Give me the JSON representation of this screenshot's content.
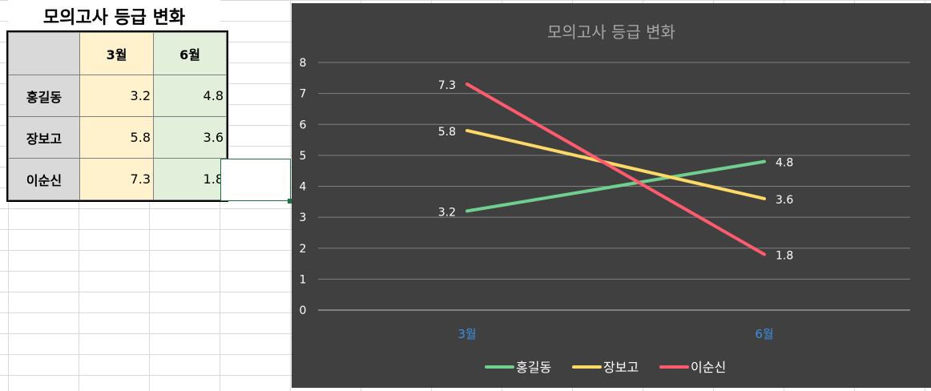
{
  "sheet": {
    "title": "모의고사 등급 변화",
    "table": {
      "headers": [
        "",
        "3월",
        "6월"
      ],
      "rows": [
        {
          "name": "홍길동",
          "mar": "3.2",
          "jun": "4.8"
        },
        {
          "name": "장보고",
          "mar": "5.8",
          "jun": "3.6"
        },
        {
          "name": "이순신",
          "mar": "7.3",
          "jun": "1.8"
        }
      ]
    }
  },
  "chart_data": {
    "type": "line",
    "title": "모의고사 등급 변화",
    "categories": [
      "3월",
      "6월"
    ],
    "ylim": [
      0,
      8
    ],
    "yticks": [
      0,
      1,
      2,
      3,
      4,
      5,
      6,
      7,
      8
    ],
    "grid": true,
    "legend": "bottom",
    "series": [
      {
        "name": "홍길동",
        "values": [
          3.2,
          4.8
        ],
        "color": "#6fcf8f"
      },
      {
        "name": "장보고",
        "values": [
          5.8,
          3.6
        ],
        "color": "#ffd966"
      },
      {
        "name": "이순신",
        "values": [
          7.3,
          1.8
        ],
        "color": "#ff5b6e"
      }
    ],
    "colors": {
      "background": "#404040",
      "title": "#a6a6a6",
      "axis_text": "#ffffff",
      "category_text": "#3b8fe6",
      "gridline": "#7f7f7f"
    }
  }
}
